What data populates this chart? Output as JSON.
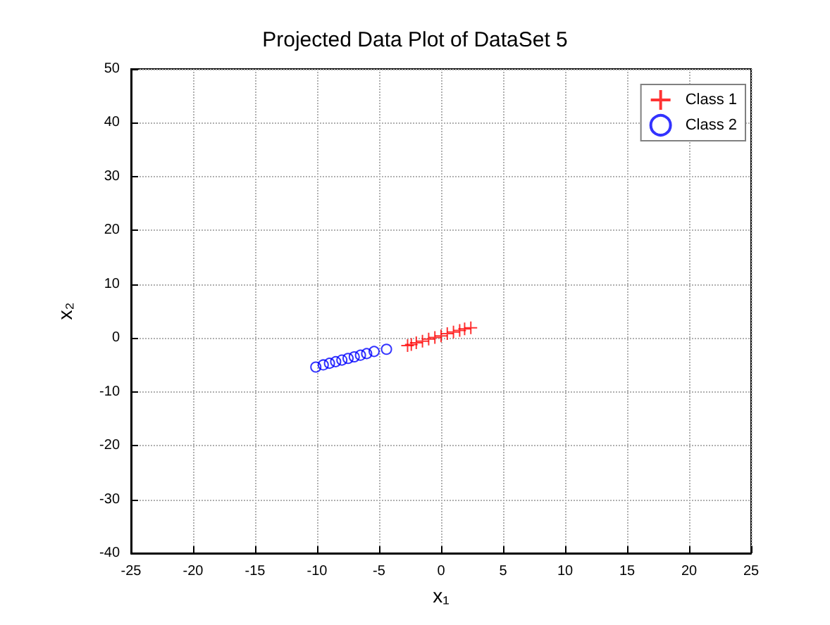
{
  "chart_data": {
    "type": "scatter",
    "title": "Projected Data Plot of DataSet 5",
    "xlabel": "x₁",
    "ylabel": "x₂",
    "series": [
      {
        "name": "Class 1",
        "color": "#ff0000",
        "marker": "cross",
        "x": [
          -2.7,
          -2.4,
          -2.0,
          -1.5,
          -1.0,
          -0.5,
          0,
          0.5,
          1.0,
          1.5,
          1.9,
          2.4
        ],
        "values": [
          -1.4,
          -1.2,
          -0.9,
          -0.6,
          -0.2,
          0.1,
          0.4,
          0.8,
          1.1,
          1.4,
          1.7,
          1.9
        ]
      },
      {
        "name": "Class 2",
        "color": "#0000ff",
        "marker": "circle",
        "x": [
          -10.1,
          -9.5,
          -9.0,
          -8.5,
          -8.0,
          -7.5,
          -7.0,
          -6.5,
          -6.0,
          -5.4,
          -4.4
        ],
        "values": [
          -5.4,
          -5.0,
          -4.7,
          -4.4,
          -4.1,
          -3.8,
          -3.5,
          -3.2,
          -2.9,
          -2.5,
          -2.1
        ]
      }
    ],
    "xlim": [
      -25,
      25
    ],
    "xticks": [
      -25,
      -20,
      -15,
      -10,
      -5,
      0,
      5,
      10,
      15,
      20,
      25
    ],
    "ylim": [
      -40,
      50
    ],
    "yticks": [
      -40,
      -30,
      -20,
      -10,
      0,
      10,
      20,
      30,
      40,
      50
    ],
    "grid": true,
    "legend": "top right"
  }
}
